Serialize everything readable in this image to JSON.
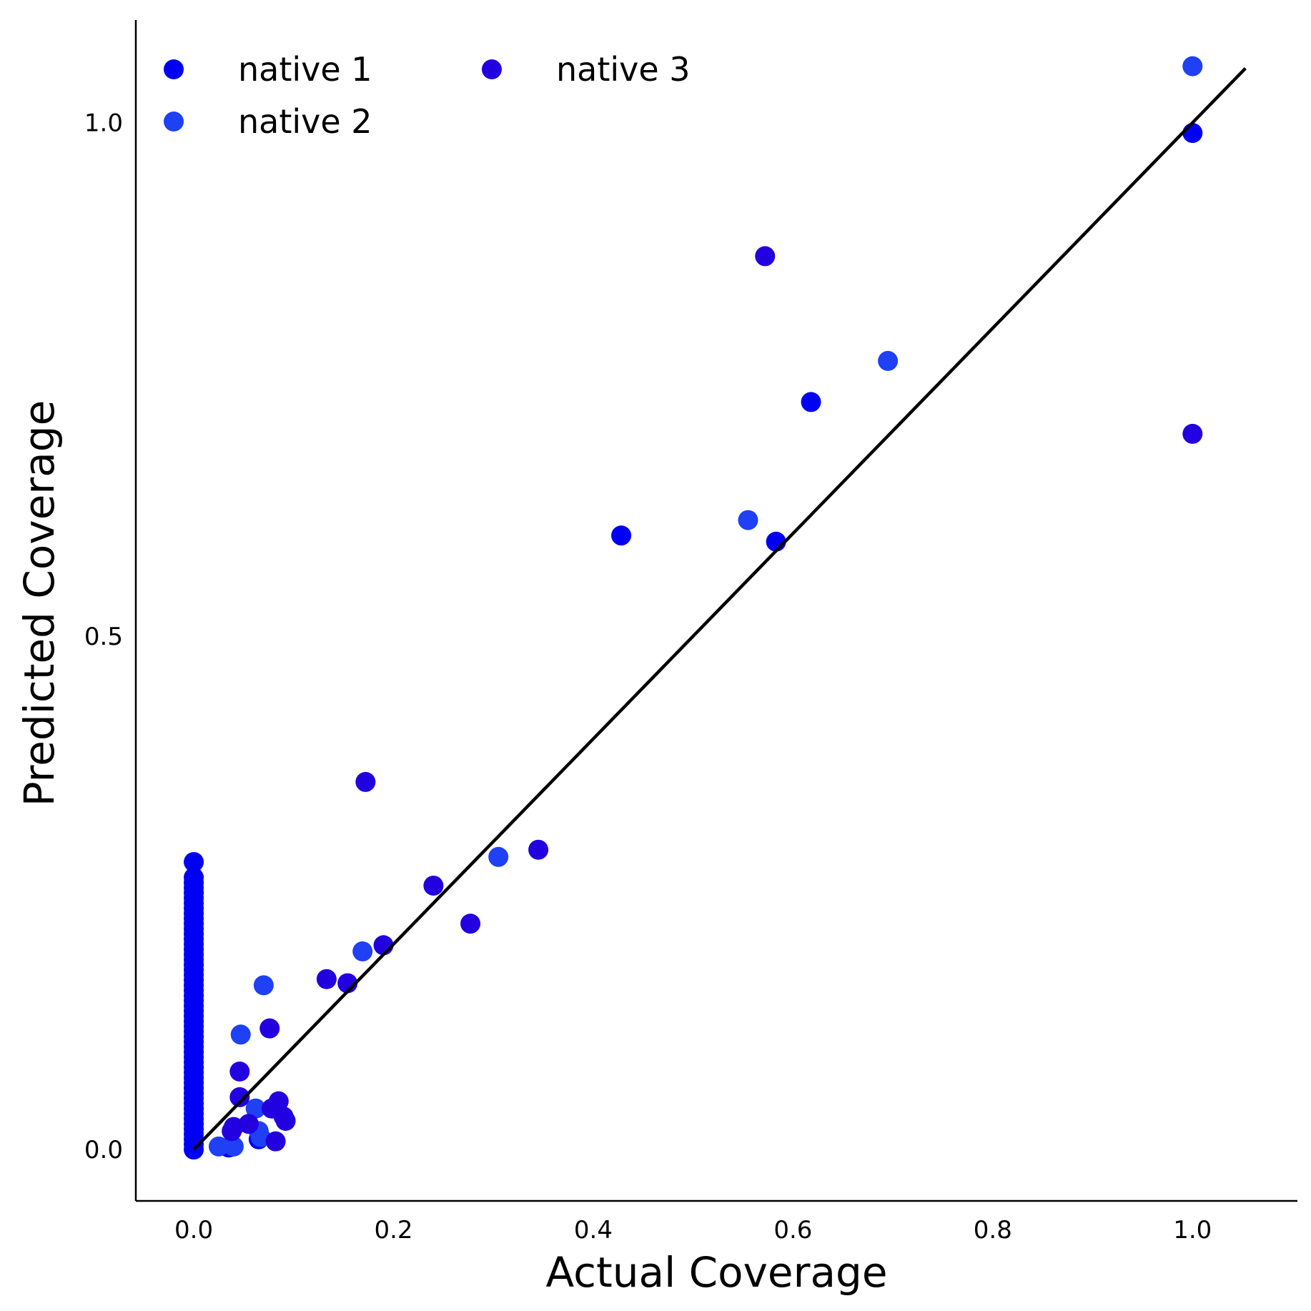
{
  "chart_data": {
    "type": "scatter",
    "xlabel": "Actual Coverage",
    "ylabel": "Predicted Coverage",
    "xlim": [
      -0.058,
      1.105
    ],
    "ylim": [
      -0.05,
      1.1
    ],
    "xticks": [
      0.0,
      0.2,
      0.4,
      0.6,
      0.8,
      1.0
    ],
    "xtick_labels": [
      "0.0",
      "0.2",
      "0.4",
      "0.6",
      "0.8",
      "1.0"
    ],
    "yticks": [
      0.0,
      0.5,
      1.0
    ],
    "ytick_labels": [
      "0.0",
      "0.5",
      "1.0"
    ],
    "grid": false,
    "legend": {
      "placement": "top-left",
      "columns": 2
    },
    "reference_line": {
      "x": [
        0.0,
        1.053
      ],
      "y": [
        0.0,
        1.053
      ],
      "color": "#000000"
    },
    "series": [
      {
        "name": "native 1",
        "color": "#0000f5",
        "x": [
          0,
          0,
          0,
          0,
          0,
          0,
          0,
          0,
          0,
          0,
          0,
          0,
          0,
          0,
          0,
          0,
          0,
          0,
          0,
          0,
          0,
          0,
          0,
          0,
          0,
          0,
          0,
          0,
          0,
          0,
          0,
          0,
          0,
          0,
          0,
          0,
          0,
          0,
          0,
          0,
          0,
          0,
          0,
          0,
          0,
          0,
          0,
          0,
          0,
          0,
          0,
          0,
          0,
          0,
          0,
          1.0,
          0.618,
          0.583,
          0.428,
          0.035,
          0.065
        ],
        "y": [
          0,
          0.005,
          0.01,
          0.015,
          0.02,
          0.025,
          0.03,
          0.035,
          0.04,
          0.045,
          0.05,
          0.055,
          0.06,
          0.065,
          0.07,
          0.075,
          0.08,
          0.085,
          0.09,
          0.095,
          0.1,
          0.105,
          0.11,
          0.115,
          0.12,
          0.125,
          0.13,
          0.135,
          0.14,
          0.145,
          0.15,
          0.155,
          0.16,
          0.165,
          0.17,
          0.175,
          0.18,
          0.185,
          0.19,
          0.195,
          0.2,
          0.205,
          0.21,
          0.215,
          0.22,
          0.225,
          0.23,
          0.235,
          0.24,
          0.245,
          0.25,
          0.255,
          0.26,
          0.265,
          0.28,
          0.99,
          0.728,
          0.592,
          0.598,
          0.002,
          0.01
        ]
      },
      {
        "name": "native 2",
        "color": "#1f40f5",
        "x": [
          1.0,
          0.695,
          0.555,
          0.305,
          0.169,
          0.07,
          0.047,
          0.062,
          0.065,
          0.025,
          0.04,
          0.067
        ],
        "y": [
          1.055,
          0.768,
          0.613,
          0.285,
          0.193,
          0.16,
          0.112,
          0.04,
          0.018,
          0.003,
          0.003,
          0.012
        ]
      },
      {
        "name": "native 3",
        "color": "#2200e0",
        "x": [
          1.0,
          0.572,
          0.172,
          0.345,
          0.24,
          0.277,
          0.19,
          0.133,
          0.154,
          0.076,
          0.046,
          0.046,
          0.085,
          0.078,
          0.092,
          0.09,
          0.04,
          0.038,
          0.055,
          0.082
        ],
        "y": [
          0.697,
          0.87,
          0.358,
          0.292,
          0.257,
          0.22,
          0.199,
          0.166,
          0.162,
          0.118,
          0.076,
          0.051,
          0.047,
          0.04,
          0.028,
          0.032,
          0.022,
          0.018,
          0.025,
          0.008
        ]
      }
    ]
  }
}
